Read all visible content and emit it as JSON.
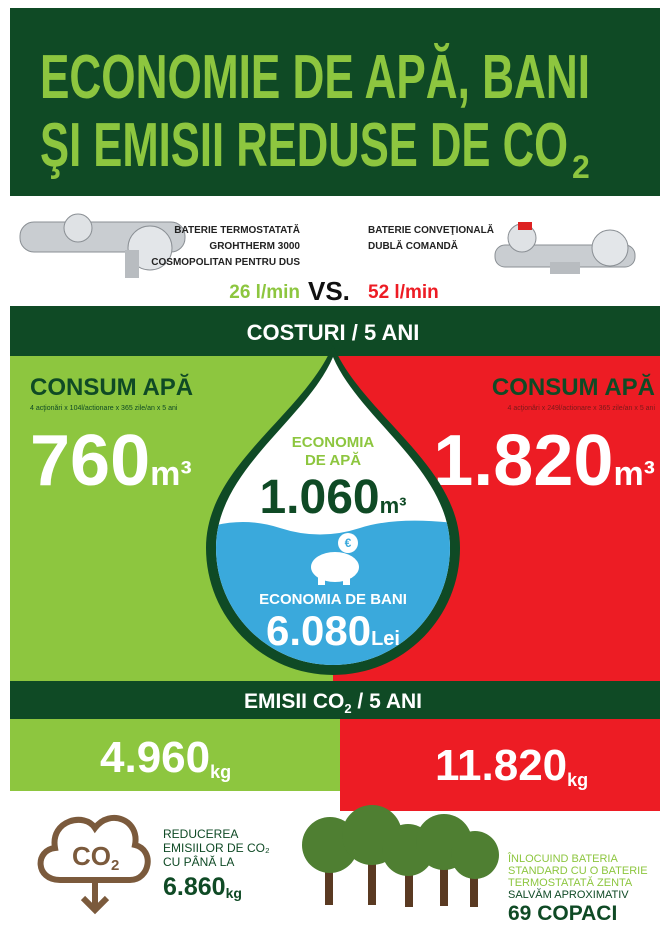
{
  "header": {
    "title_line1": "ECONOMIE DE APĂ, BANI",
    "title_line2": "ŞI EMISII REDUSE DE CO",
    "title_sub": "2"
  },
  "comparison": {
    "left": {
      "lines": [
        "BATERIE TERMOSTATATĂ",
        "GROHTHERM 3000",
        "COSMOPOLITAN PENTRU DUS"
      ],
      "flow": "26 l/min"
    },
    "vs": "VS.",
    "right": {
      "lines": [
        "BATERIE CONVEŢIONALĂ",
        "DUBLĂ COMANDĂ"
      ],
      "flow": "52 l/min"
    }
  },
  "costs": {
    "heading": "COSTURI / 5 ANI",
    "left": {
      "label": "CONSUM APĂ",
      "note": "4 acţionări x 104l/actionare x 365 zile/an x 5 ani",
      "value": "760",
      "unit": "m³"
    },
    "right": {
      "label": "CONSUM APĂ",
      "note": "4 acţionări x 249l/actionare x 365 zile/an x 5 ani",
      "value": "1.820",
      "unit": "m³"
    },
    "water": {
      "lines": [
        "ECONOMIA",
        "DE APĂ"
      ],
      "value": "1.060",
      "unit": "m³"
    },
    "money": {
      "label": "ECONOMIA DE BANI",
      "value": "6.080",
      "unit": "Lei",
      "icon": "€"
    }
  },
  "emissions": {
    "heading": "EMISII CO",
    "heading_sub": "2",
    "heading_rest": " / 5 ANI",
    "left": {
      "value": "4.960",
      "unit": "kg"
    },
    "right": {
      "value": "11.820",
      "unit": "kg"
    }
  },
  "footer": {
    "icon": "CO",
    "icon_sub": "2",
    "left": {
      "lines": [
        "REDUCEREA",
        "EMISIILOR DE CO₂",
        "CU PÂNĂ LA"
      ],
      "value": "6.860",
      "unit": "kg"
    },
    "right": {
      "lines": [
        "ÎNLOCUIND BATERIA",
        "STANDARD CU O BATERIE",
        "TERMOSTATATĂ ZENTA"
      ],
      "note": "SALVĂM APROXIMATIV",
      "value": "69 COPACI"
    }
  }
}
